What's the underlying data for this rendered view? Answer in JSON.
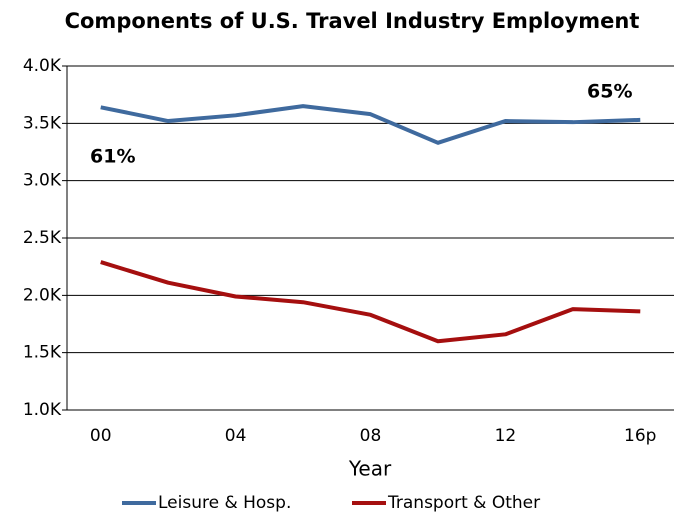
{
  "chart_data": {
    "type": "line",
    "title": "Components of U.S. Travel Industry Employment",
    "x_label": "Year",
    "categories": [
      "00",
      null,
      "04",
      null,
      "08",
      null,
      "12",
      null,
      "16p"
    ],
    "series": [
      {
        "name": "Leisure & Hosp.",
        "color": "#3f6a9e",
        "values": [
          3640,
          3520,
          3570,
          3650,
          3580,
          3330,
          3520,
          3510,
          3530
        ]
      },
      {
        "name": "Transport & Other",
        "color": "#a50f0f",
        "values": [
          2290,
          2110,
          1990,
          1940,
          1830,
          1600,
          1660,
          1880,
          1860
        ]
      }
    ],
    "ylim": [
      1000,
      4000
    ],
    "yticks": [
      {
        "value": 1000,
        "label": "1.0K"
      },
      {
        "value": 1500,
        "label": "1.5K"
      },
      {
        "value": 2000,
        "label": "2.0K"
      },
      {
        "value": 2500,
        "label": "2.5K"
      },
      {
        "value": 3000,
        "label": "3.0K"
      },
      {
        "value": 3500,
        "label": "3.5K"
      },
      {
        "value": 4000,
        "label": "4.0K"
      }
    ],
    "grid": true,
    "annotations": [
      "61%",
      "65%"
    ],
    "legend": "bottom"
  }
}
